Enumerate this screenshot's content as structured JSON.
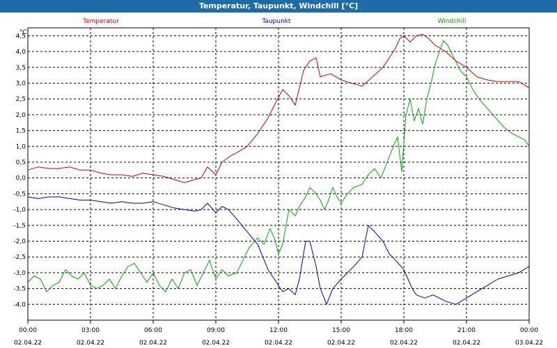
{
  "window": {
    "title": "Temperatur, Taupunkt, Windchill [°C]"
  },
  "chart_data": {
    "type": "line",
    "title": "Temperatur, Taupunkt, Windchill [°C]",
    "ylabel": "°C",
    "ylim": [
      -4.5,
      4.75
    ],
    "yticks": [
      {
        "v": 4.5,
        "label": "4,5"
      },
      {
        "v": 4.0,
        "label": "4,0"
      },
      {
        "v": 3.5,
        "label": "3,5"
      },
      {
        "v": 3.0,
        "label": "3,0"
      },
      {
        "v": 2.5,
        "label": "2,5"
      },
      {
        "v": 2.0,
        "label": "2,0"
      },
      {
        "v": 1.5,
        "label": "1,5"
      },
      {
        "v": 1.0,
        "label": "1,0"
      },
      {
        "v": 0.5,
        "label": "0,5"
      },
      {
        "v": 0.0,
        "label": "0,0"
      },
      {
        "v": -0.5,
        "label": "-0,5"
      },
      {
        "v": -1.0,
        "label": "-1,0"
      },
      {
        "v": -1.5,
        "label": "-1,5"
      },
      {
        "v": -2.0,
        "label": "-2,0"
      },
      {
        "v": -2.5,
        "label": "-2,5"
      },
      {
        "v": -3.0,
        "label": "-3,0"
      },
      {
        "v": -3.5,
        "label": "-3,5"
      },
      {
        "v": -4.0,
        "label": "-4,0"
      }
    ],
    "xlim": [
      0,
      24
    ],
    "xticks": [
      {
        "h": 0,
        "time": "00:00",
        "date": "02.04.22"
      },
      {
        "h": 3,
        "time": "03:00",
        "date": "02.04.22"
      },
      {
        "h": 6,
        "time": "06:00",
        "date": "02.04.22"
      },
      {
        "h": 9,
        "time": "09:00",
        "date": "02.04.22"
      },
      {
        "h": 12,
        "time": "12:00",
        "date": "02.04.22"
      },
      {
        "h": 15,
        "time": "15:00",
        "date": "02.04.22"
      },
      {
        "h": 18,
        "time": "18:00",
        "date": "02.04.22"
      },
      {
        "h": 21,
        "time": "21:00",
        "date": "02.04.22"
      },
      {
        "h": 24,
        "time": "00:00",
        "date": "03.04.22"
      }
    ],
    "grid": true,
    "series": [
      {
        "name": "Temperatur",
        "color": "#cc0000",
        "points": [
          [
            0,
            0.25
          ],
          [
            0.5,
            0.35
          ],
          [
            1,
            0.3
          ],
          [
            1.5,
            0.3
          ],
          [
            2,
            0.35
          ],
          [
            2.5,
            0.25
          ],
          [
            3,
            0.25
          ],
          [
            3.5,
            0.15
          ],
          [
            4,
            0.1
          ],
          [
            4.5,
            0.1
          ],
          [
            5,
            0.05
          ],
          [
            5.5,
            0.15
          ],
          [
            6,
            0.1
          ],
          [
            6.5,
            0.05
          ],
          [
            7,
            -0.05
          ],
          [
            7.5,
            -0.15
          ],
          [
            8,
            -0.05
          ],
          [
            8.3,
            0.0
          ],
          [
            8.6,
            0.35
          ],
          [
            9,
            0.1
          ],
          [
            9.3,
            0.5
          ],
          [
            9.7,
            0.7
          ],
          [
            10,
            0.8
          ],
          [
            10.5,
            1.0
          ],
          [
            11,
            1.4
          ],
          [
            11.5,
            1.9
          ],
          [
            11.8,
            2.3
          ],
          [
            12.2,
            2.8
          ],
          [
            12.5,
            2.6
          ],
          [
            12.8,
            2.3
          ],
          [
            13.2,
            3.4
          ],
          [
            13.5,
            3.7
          ],
          [
            13.8,
            3.8
          ],
          [
            14,
            3.2
          ],
          [
            14.5,
            3.3
          ],
          [
            15,
            3.1
          ],
          [
            15.5,
            3.0
          ],
          [
            15.8,
            2.95
          ],
          [
            16,
            2.9
          ],
          [
            16.5,
            3.2
          ],
          [
            17,
            3.5
          ],
          [
            17.3,
            3.8
          ],
          [
            17.6,
            4.1
          ],
          [
            17.8,
            4.4
          ],
          [
            18,
            4.5
          ],
          [
            18.3,
            4.3
          ],
          [
            18.6,
            4.5
          ],
          [
            18.9,
            4.55
          ],
          [
            19.2,
            4.4
          ],
          [
            19.5,
            4.2
          ],
          [
            20,
            4.0
          ],
          [
            20.5,
            3.7
          ],
          [
            21,
            3.5
          ],
          [
            21.5,
            3.2
          ],
          [
            22,
            3.1
          ],
          [
            22.5,
            3.05
          ],
          [
            23,
            3.05
          ],
          [
            23.5,
            3.05
          ],
          [
            24,
            2.85
          ]
        ]
      },
      {
        "name": "Taupunkt",
        "color": "#0000bb",
        "points": [
          [
            0,
            -0.6
          ],
          [
            0.5,
            -0.65
          ],
          [
            1,
            -0.6
          ],
          [
            1.5,
            -0.6
          ],
          [
            2,
            -0.65
          ],
          [
            2.5,
            -0.7
          ],
          [
            3,
            -0.7
          ],
          [
            3.5,
            -0.75
          ],
          [
            4,
            -0.8
          ],
          [
            4.5,
            -0.75
          ],
          [
            5,
            -0.8
          ],
          [
            5.5,
            -0.8
          ],
          [
            6,
            -0.75
          ],
          [
            6.5,
            -0.85
          ],
          [
            7,
            -0.95
          ],
          [
            7.5,
            -1.0
          ],
          [
            8,
            -1.05
          ],
          [
            8.3,
            -1.0
          ],
          [
            8.6,
            -0.8
          ],
          [
            9,
            -1.1
          ],
          [
            9.3,
            -0.9
          ],
          [
            9.6,
            -1.0
          ],
          [
            10,
            -1.3
          ],
          [
            10.5,
            -1.7
          ],
          [
            11,
            -2.1
          ],
          [
            11.5,
            -2.9
          ],
          [
            12,
            -3.4
          ],
          [
            12.2,
            -3.6
          ],
          [
            12.5,
            -3.5
          ],
          [
            12.8,
            -3.7
          ],
          [
            13,
            -3.2
          ],
          [
            13.3,
            -2.0
          ],
          [
            13.5,
            -2.0
          ],
          [
            13.8,
            -2.8
          ],
          [
            14,
            -3.5
          ],
          [
            14.3,
            -4.0
          ],
          [
            14.6,
            -3.5
          ],
          [
            15,
            -3.2
          ],
          [
            15.3,
            -3.0
          ],
          [
            15.6,
            -2.8
          ],
          [
            16,
            -2.5
          ],
          [
            16.3,
            -1.5
          ],
          [
            16.6,
            -1.7
          ],
          [
            17,
            -2.0
          ],
          [
            17.3,
            -2.4
          ],
          [
            17.6,
            -2.6
          ],
          [
            18,
            -2.9
          ],
          [
            18.2,
            -3.2
          ],
          [
            18.4,
            -3.5
          ],
          [
            18.6,
            -3.7
          ],
          [
            19,
            -3.8
          ],
          [
            19.4,
            -3.7
          ],
          [
            19.7,
            -3.8
          ],
          [
            20,
            -3.9
          ],
          [
            20.5,
            -4.0
          ],
          [
            21,
            -3.8
          ],
          [
            21.5,
            -3.6
          ],
          [
            22,
            -3.4
          ],
          [
            22.5,
            -3.2
          ],
          [
            23,
            -3.1
          ],
          [
            23.5,
            -3.0
          ],
          [
            24,
            -2.8
          ]
        ]
      },
      {
        "name": "Windchill",
        "color": "#00aa00",
        "points": [
          [
            0,
            -3.3
          ],
          [
            0.3,
            -3.1
          ],
          [
            0.6,
            -3.2
          ],
          [
            0.9,
            -3.6
          ],
          [
            1.2,
            -3.4
          ],
          [
            1.5,
            -3.3
          ],
          [
            1.8,
            -2.9
          ],
          [
            2.1,
            -3.1
          ],
          [
            2.4,
            -3.2
          ],
          [
            2.7,
            -3.0
          ],
          [
            3,
            -3.4
          ],
          [
            3.3,
            -3.5
          ],
          [
            3.6,
            -3.4
          ],
          [
            3.9,
            -3.2
          ],
          [
            4.2,
            -3.5
          ],
          [
            4.5,
            -3.1
          ],
          [
            4.8,
            -2.8
          ],
          [
            5.1,
            -2.7
          ],
          [
            5.4,
            -3.0
          ],
          [
            5.7,
            -3.3
          ],
          [
            6,
            -3.0
          ],
          [
            6.3,
            -3.4
          ],
          [
            6.6,
            -3.6
          ],
          [
            6.9,
            -3.2
          ],
          [
            7.2,
            -3.5
          ],
          [
            7.5,
            -3.0
          ],
          [
            7.8,
            -2.9
          ],
          [
            8.1,
            -3.4
          ],
          [
            8.4,
            -3.0
          ],
          [
            8.7,
            -2.6
          ],
          [
            9,
            -3.2
          ],
          [
            9.3,
            -2.9
          ],
          [
            9.6,
            -3.1
          ],
          [
            10,
            -3.0
          ],
          [
            10.3,
            -2.6
          ],
          [
            10.6,
            -2.2
          ],
          [
            11,
            -1.9
          ],
          [
            11.3,
            -2.1
          ],
          [
            11.6,
            -1.6
          ],
          [
            11.8,
            -1.9
          ],
          [
            12,
            -2.4
          ],
          [
            12.2,
            -2.1
          ],
          [
            12.5,
            -1.0
          ],
          [
            12.8,
            -1.2
          ],
          [
            13,
            -0.9
          ],
          [
            13.3,
            -0.6
          ],
          [
            13.5,
            -0.3
          ],
          [
            13.8,
            -0.5
          ],
          [
            14,
            -0.7
          ],
          [
            14.2,
            -1.0
          ],
          [
            14.4,
            -0.7
          ],
          [
            14.6,
            -0.3
          ],
          [
            14.8,
            -0.6
          ],
          [
            15,
            -0.8
          ],
          [
            15.3,
            -0.5
          ],
          [
            15.6,
            -0.3
          ],
          [
            16,
            -0.2
          ],
          [
            16.3,
            0.1
          ],
          [
            16.6,
            0.3
          ],
          [
            16.9,
            0.0
          ],
          [
            17.2,
            0.5
          ],
          [
            17.5,
            1.0
          ],
          [
            17.7,
            1.3
          ],
          [
            17.9,
            0.2
          ],
          [
            18.1,
            2.0
          ],
          [
            18.3,
            2.5
          ],
          [
            18.5,
            1.8
          ],
          [
            18.7,
            2.2
          ],
          [
            18.9,
            1.7
          ],
          [
            19.1,
            2.5
          ],
          [
            19.3,
            3.0
          ],
          [
            19.5,
            3.6
          ],
          [
            19.7,
            4.0
          ],
          [
            19.9,
            4.35
          ],
          [
            20.1,
            4.2
          ],
          [
            20.4,
            3.8
          ],
          [
            20.7,
            3.4
          ],
          [
            21,
            3.2
          ],
          [
            21.3,
            2.8
          ],
          [
            21.6,
            2.5
          ],
          [
            22,
            2.2
          ],
          [
            22.4,
            1.9
          ],
          [
            22.8,
            1.6
          ],
          [
            23.2,
            1.4
          ],
          [
            23.5,
            1.3
          ],
          [
            23.8,
            1.2
          ],
          [
            24,
            1.0
          ]
        ]
      }
    ]
  }
}
